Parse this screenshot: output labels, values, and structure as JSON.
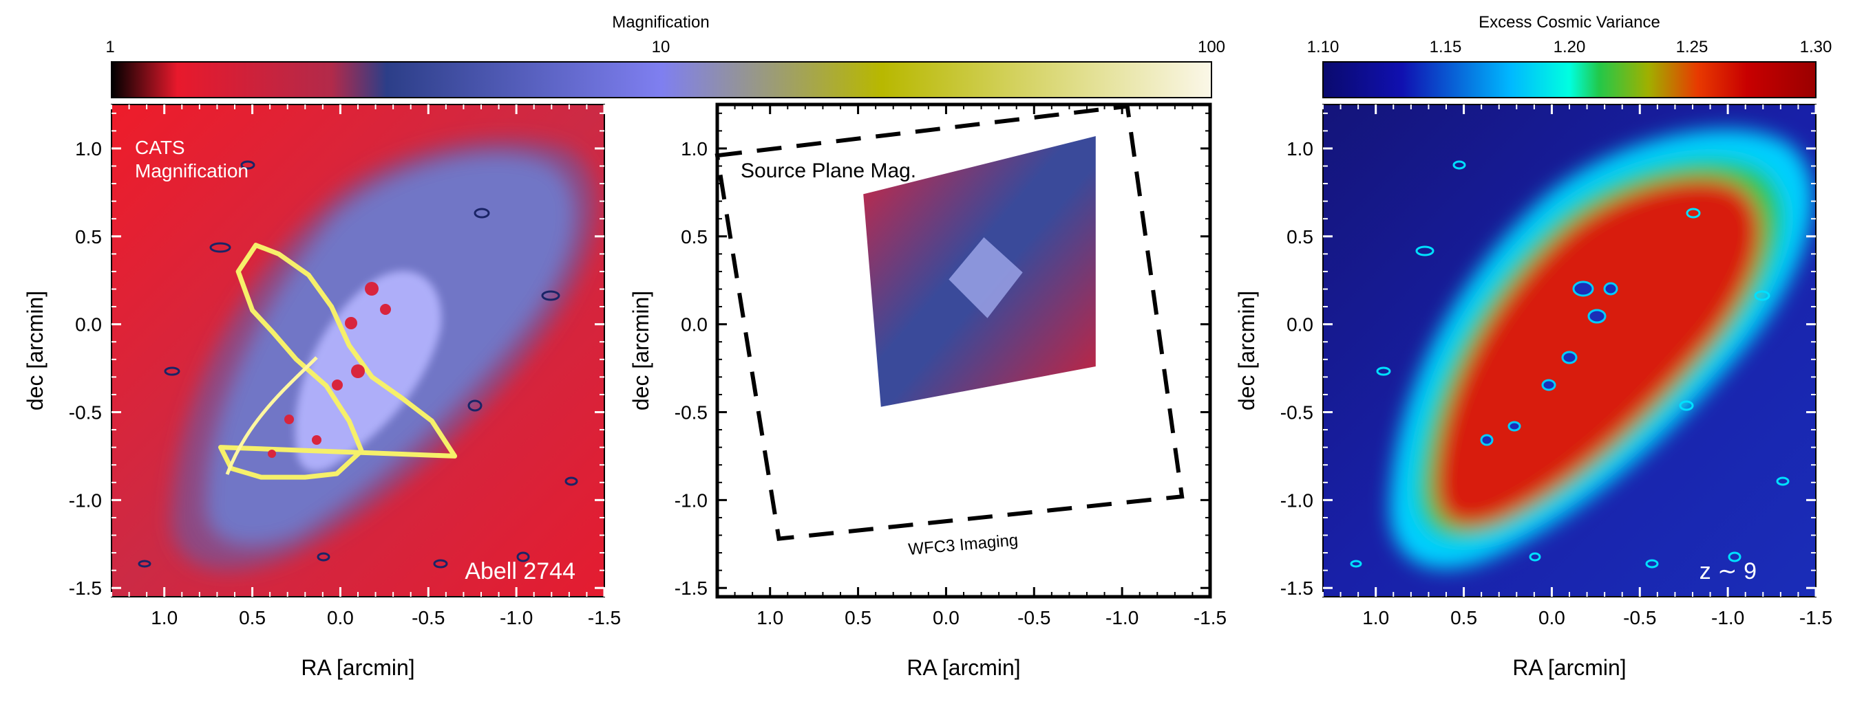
{
  "chart_data": [
    {
      "type": "heatmap",
      "panel": "left",
      "annotations": [
        "CATS",
        "Magnification",
        "Abell 2744"
      ],
      "xlabel": "RA [arcmin]",
      "ylabel": "dec [arcmin]",
      "xlim": [
        1.3,
        -1.5
      ],
      "ylim": [
        -1.55,
        1.25
      ],
      "x_ticks": [
        1.0,
        0.5,
        0.0,
        -0.5,
        -1.0,
        -1.5
      ],
      "x_tick_labels": [
        "1.0",
        "0.5",
        "0.0",
        "-0.5",
        "-1.0",
        "-1.5"
      ],
      "y_ticks": [
        1.0,
        0.5,
        0.0,
        -0.5,
        -1.0,
        -1.5
      ],
      "y_tick_labels": [
        "1.0",
        "0.5",
        "0.0",
        "-0.5",
        "-1.0",
        "-1.5"
      ],
      "colorbar": {
        "title": "Magnification",
        "scale": "log",
        "range": [
          1,
          100
        ],
        "tick_labels": [
          "1",
          "10",
          "100"
        ],
        "colors": [
          "#000000",
          "#e8192c",
          "#b22a4a",
          "#2c3e88",
          "#7f7ff0",
          "#b8b800",
          "#fbf7e8"
        ]
      },
      "critical_curve": [
        [
          -0.65,
          -0.75
        ],
        [
          -0.52,
          -0.55
        ],
        [
          -0.35,
          -0.42
        ],
        [
          -0.18,
          -0.3
        ],
        [
          -0.05,
          -0.12
        ],
        [
          0.05,
          0.1
        ],
        [
          0.18,
          0.28
        ],
        [
          0.35,
          0.4
        ],
        [
          0.48,
          0.45
        ],
        [
          0.58,
          0.3
        ],
        [
          0.5,
          0.08
        ],
        [
          0.38,
          -0.05
        ],
        [
          0.25,
          -0.2
        ],
        [
          0.08,
          -0.35
        ],
        [
          -0.05,
          -0.55
        ],
        [
          -0.12,
          -0.72
        ],
        [
          0.02,
          -0.85
        ],
        [
          0.2,
          -0.87
        ],
        [
          0.45,
          -0.87
        ],
        [
          0.62,
          -0.82
        ],
        [
          0.68,
          -0.7
        ]
      ]
    },
    {
      "type": "heatmap",
      "panel": "center",
      "annotations": [
        "Source Plane Mag.",
        "WFC3 Imaging"
      ],
      "xlabel": "RA [arcmin]",
      "ylabel": "dec [arcmin]",
      "xlim": [
        1.3,
        -1.5
      ],
      "ylim": [
        -1.55,
        1.25
      ],
      "x_ticks": [
        1.0,
        0.5,
        0.0,
        -0.5,
        -1.0,
        -1.5
      ],
      "x_tick_labels": [
        "1.0",
        "0.5",
        "0.0",
        "-0.5",
        "-1.0",
        "-1.5"
      ],
      "y_ticks": [
        1.0,
        0.5,
        0.0,
        -0.5,
        -1.0,
        -1.5
      ],
      "y_tick_labels": [
        "1.0",
        "0.5",
        "0.0",
        "-0.5",
        "-1.0",
        "-1.5"
      ],
      "source_region": [
        [
          0.47,
          0.74
        ],
        [
          -0.85,
          1.07
        ],
        [
          -0.85,
          -0.24
        ],
        [
          0.37,
          -0.47
        ]
      ],
      "wfc3_footprint": [
        [
          1.3,
          0.96
        ],
        [
          -1.03,
          1.24
        ],
        [
          -1.34,
          -0.98
        ],
        [
          0.95,
          -1.22
        ]
      ]
    },
    {
      "type": "heatmap",
      "panel": "right",
      "annotations": [
        "z ∼ 9"
      ],
      "xlabel": "RA [arcmin]",
      "ylabel": "dec [arcmin]",
      "xlim": [
        1.3,
        -1.5
      ],
      "ylim": [
        -1.55,
        1.25
      ],
      "x_ticks": [
        1.0,
        0.5,
        0.0,
        -0.5,
        -1.0,
        -1.5
      ],
      "x_tick_labels": [
        "1.0",
        "0.5",
        "0.0",
        "-0.5",
        "-1.0",
        "-1.5"
      ],
      "y_ticks": [
        1.0,
        0.5,
        0.0,
        -0.5,
        -1.0,
        -1.5
      ],
      "y_tick_labels": [
        "1.0",
        "0.5",
        "0.0",
        "-0.5",
        "-1.0",
        "-1.5"
      ],
      "colorbar": {
        "title": "Excess Cosmic Variance",
        "scale": "linear",
        "range": [
          1.1,
          1.3
        ],
        "tick_labels": [
          "1.10",
          "1.15",
          "1.20",
          "1.25",
          "1.30"
        ],
        "colors": [
          "#0a0a6e",
          "#1010b0",
          "#00b8ff",
          "#00ffe0",
          "#22c84a",
          "#a0b000",
          "#e83a00",
          "#c80000",
          "#9a0000"
        ]
      }
    }
  ]
}
